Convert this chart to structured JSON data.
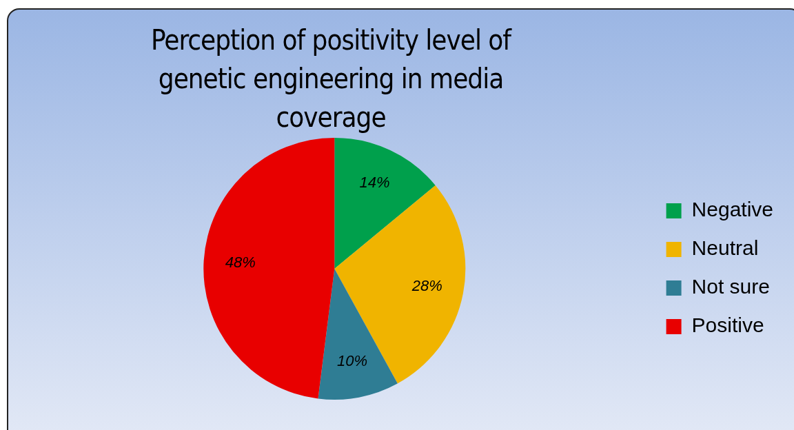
{
  "chart_data": {
    "type": "pie",
    "title": "Perception of positivity level of genetic engineering in media coverage",
    "categories": [
      "Negative",
      "Neutral",
      "Not sure",
      "Positive"
    ],
    "values": [
      14,
      28,
      10,
      48
    ],
    "value_labels": [
      "14%",
      "28%",
      "10%",
      "48%"
    ],
    "colors": [
      "#00a04c",
      "#f0b400",
      "#2f7d94",
      "#e80000"
    ],
    "legend": "right"
  }
}
